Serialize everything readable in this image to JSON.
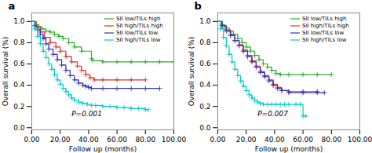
{
  "chart_data": [
    {
      "type": "step",
      "title": "a",
      "annotation": "P=0.001",
      "xlabel": "Follow up (months)",
      "ylabel": "Overall survival (%)",
      "xlim": [
        0,
        100
      ],
      "ylim": [
        -0.02,
        1.08
      ],
      "xticks": [
        {
          "value": 0,
          "label": "0.00"
        },
        {
          "value": 20,
          "label": "20.00"
        },
        {
          "value": 40,
          "label": "40.00"
        },
        {
          "value": 60,
          "label": "60.00"
        },
        {
          "value": 80,
          "label": "80.00"
        },
        {
          "value": 100,
          "label": "100.00"
        }
      ],
      "yticks": [
        {
          "value": 0,
          "label": "0.0"
        },
        0.2,
        0.4,
        0.6,
        0.8,
        {
          "value": 1,
          "label": "1.0"
        }
      ],
      "grid": false,
      "legend": "upper right",
      "series": [
        {
          "name": "SII low/TILs high",
          "color": "#33aa33",
          "marker": "plus",
          "x": [
            0,
            3,
            5,
            7,
            10,
            13,
            16,
            19,
            22,
            26,
            30,
            35,
            42,
            43,
            50,
            60,
            70,
            80,
            90,
            100
          ],
          "values": [
            1.0,
            0.97,
            0.95,
            0.93,
            0.91,
            0.9,
            0.88,
            0.86,
            0.84,
            0.8,
            0.76,
            0.72,
            0.65,
            0.63,
            0.62,
            0.62,
            0.62,
            0.62,
            0.62,
            0.62
          ]
        },
        {
          "name": "SII high/TILs high",
          "color": "#dd3333",
          "marker": "plus",
          "x": [
            0,
            3,
            6,
            9,
            13,
            17,
            20,
            24,
            28,
            32,
            35,
            38,
            41,
            44,
            50,
            60,
            70,
            80
          ],
          "values": [
            1.0,
            0.95,
            0.9,
            0.85,
            0.8,
            0.76,
            0.72,
            0.67,
            0.62,
            0.58,
            0.54,
            0.5,
            0.47,
            0.45,
            0.45,
            0.45,
            0.45,
            0.45
          ]
        },
        {
          "name": "SII low/TILs low",
          "color": "#3333bb",
          "marker": "plus",
          "x": [
            0,
            2,
            4,
            6,
            8,
            10,
            12,
            15,
            18,
            21,
            24,
            27,
            30,
            33,
            36,
            38,
            40,
            42,
            50,
            60,
            70,
            80,
            90
          ],
          "values": [
            1.0,
            0.96,
            0.92,
            0.88,
            0.84,
            0.79,
            0.74,
            0.69,
            0.64,
            0.59,
            0.54,
            0.49,
            0.45,
            0.42,
            0.4,
            0.39,
            0.38,
            0.37,
            0.37,
            0.37,
            0.37,
            0.37,
            0.37
          ]
        },
        {
          "name": "SII high/TILs low",
          "color": "#00cccc",
          "marker": "plus",
          "x": [
            0,
            2,
            4,
            6,
            8,
            10,
            12,
            14,
            16,
            18,
            20,
            22,
            24,
            26,
            28,
            30,
            33,
            36,
            39,
            42,
            45,
            50,
            55,
            60,
            65,
            70,
            75,
            80,
            82
          ],
          "values": [
            1.0,
            0.93,
            0.86,
            0.79,
            0.72,
            0.66,
            0.6,
            0.55,
            0.5,
            0.45,
            0.41,
            0.37,
            0.34,
            0.31,
            0.28,
            0.26,
            0.24,
            0.23,
            0.22,
            0.21,
            0.21,
            0.2,
            0.2,
            0.19,
            0.19,
            0.18,
            0.18,
            0.17,
            0.17
          ]
        }
      ]
    },
    {
      "type": "step",
      "title": "b",
      "annotation": "P=0.007",
      "xlabel": "Follow up (months)",
      "ylabel": "Overall survival (%)",
      "xlim": [
        0,
        100
      ],
      "ylim": [
        -0.02,
        1.08
      ],
      "xticks": [
        {
          "value": 0,
          "label": "0.00"
        },
        {
          "value": 20,
          "label": "20.00"
        },
        {
          "value": 40,
          "label": "40.00"
        },
        {
          "value": 60,
          "label": "60.00"
        },
        {
          "value": 80,
          "label": "80.00"
        },
        {
          "value": 100,
          "label": "100.00"
        }
      ],
      "yticks": [
        {
          "value": 0,
          "label": "0.0"
        },
        0.2,
        0.4,
        0.6,
        0.8,
        {
          "value": 1,
          "label": "1.0"
        }
      ],
      "grid": false,
      "legend": "upper right",
      "series": [
        {
          "name": "SII low/TILs high",
          "color": "#33aa33",
          "marker": "plus",
          "x": [
            0,
            3,
            5,
            8,
            11,
            14,
            17,
            20,
            23,
            26,
            29,
            32,
            35,
            38,
            41,
            44,
            50,
            60,
            70,
            80
          ],
          "values": [
            1.0,
            0.97,
            0.94,
            0.91,
            0.88,
            0.84,
            0.8,
            0.76,
            0.72,
            0.68,
            0.64,
            0.6,
            0.57,
            0.54,
            0.51,
            0.5,
            0.5,
            0.5,
            0.5,
            0.5
          ]
        },
        {
          "name": "SII high/TILs high",
          "color": "#dd3333",
          "marker": "plus",
          "x": [
            0,
            3,
            6,
            9,
            12,
            15,
            18,
            21,
            24,
            27,
            30,
            33,
            36,
            39,
            42,
            45,
            50,
            60,
            70
          ],
          "values": [
            1.0,
            0.96,
            0.92,
            0.87,
            0.82,
            0.78,
            0.73,
            0.68,
            0.63,
            0.58,
            0.53,
            0.49,
            0.45,
            0.41,
            0.38,
            0.35,
            0.34,
            0.34,
            0.34
          ]
        },
        {
          "name": "SII low/TILs low",
          "color": "#3333bb",
          "marker": "plus",
          "x": [
            0,
            3,
            6,
            9,
            12,
            15,
            18,
            21,
            24,
            27,
            30,
            33,
            36,
            39,
            42,
            45,
            50,
            60,
            70,
            75
          ],
          "values": [
            1.0,
            0.96,
            0.91,
            0.87,
            0.82,
            0.77,
            0.72,
            0.67,
            0.62,
            0.57,
            0.52,
            0.48,
            0.44,
            0.4,
            0.37,
            0.35,
            0.33,
            0.33,
            0.33,
            0.33
          ]
        },
        {
          "name": "SII high/TILs low",
          "color": "#00cccc",
          "marker": "plus",
          "x": [
            0,
            2,
            4,
            6,
            8,
            10,
            12,
            14,
            16,
            18,
            20,
            22,
            24,
            26,
            28,
            30,
            32,
            35,
            38,
            41,
            44,
            47,
            50,
            55,
            58,
            60,
            62
          ],
          "values": [
            1.0,
            0.93,
            0.85,
            0.77,
            0.69,
            0.62,
            0.55,
            0.49,
            0.44,
            0.39,
            0.35,
            0.31,
            0.28,
            0.26,
            0.24,
            0.23,
            0.22,
            0.22,
            0.22,
            0.22,
            0.22,
            0.22,
            0.22,
            0.22,
            0.22,
            0.11,
            0.11
          ]
        }
      ]
    }
  ]
}
